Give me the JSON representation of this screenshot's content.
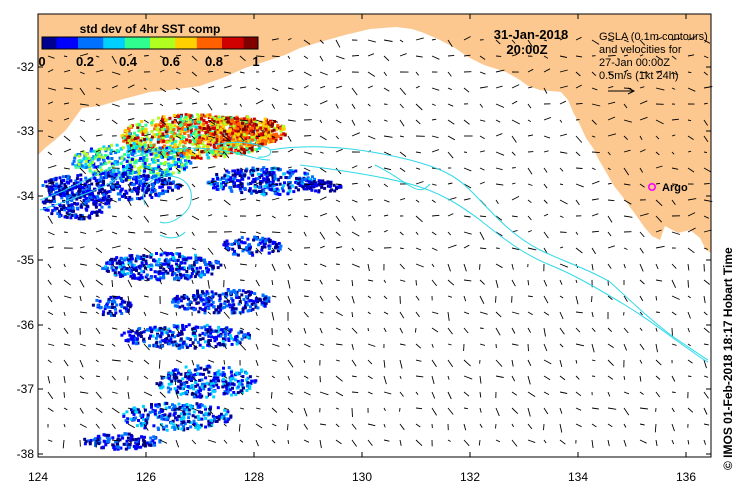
{
  "map": {
    "colorbar": {
      "title": "std dev of 4hr SST comp",
      "ticks": [
        "0",
        "0.2",
        "0.4",
        "0.6",
        "0.8",
        "1"
      ],
      "colors": [
        "#000090",
        "#0000ff",
        "#0070ff",
        "#00d0ff",
        "#30ff90",
        "#b0ff20",
        "#ffd000",
        "#ff6000",
        "#d00000",
        "#800000"
      ]
    },
    "date": "31-Jan-2018",
    "time": "20:00Z",
    "gsla_caption": [
      "GSLA (0.1m contours)",
      "and velocities for",
      "27-Jan 00:00Z",
      "0.5m/s (1kt 24h)"
    ],
    "argo_label": "Argo",
    "credit": "© IMOS 01-Feb-2018 18:17 Hobart Time",
    "x_ticks": [
      "124",
      "126",
      "128",
      "130",
      "132",
      "134",
      "136"
    ],
    "y_ticks": [
      "-32",
      "-33",
      "-34",
      "-35",
      "-36",
      "-37",
      "-38"
    ],
    "land_color": "#fcc890",
    "contour_color": "#30d8e8",
    "argo_color": "#ff00ff"
  }
}
